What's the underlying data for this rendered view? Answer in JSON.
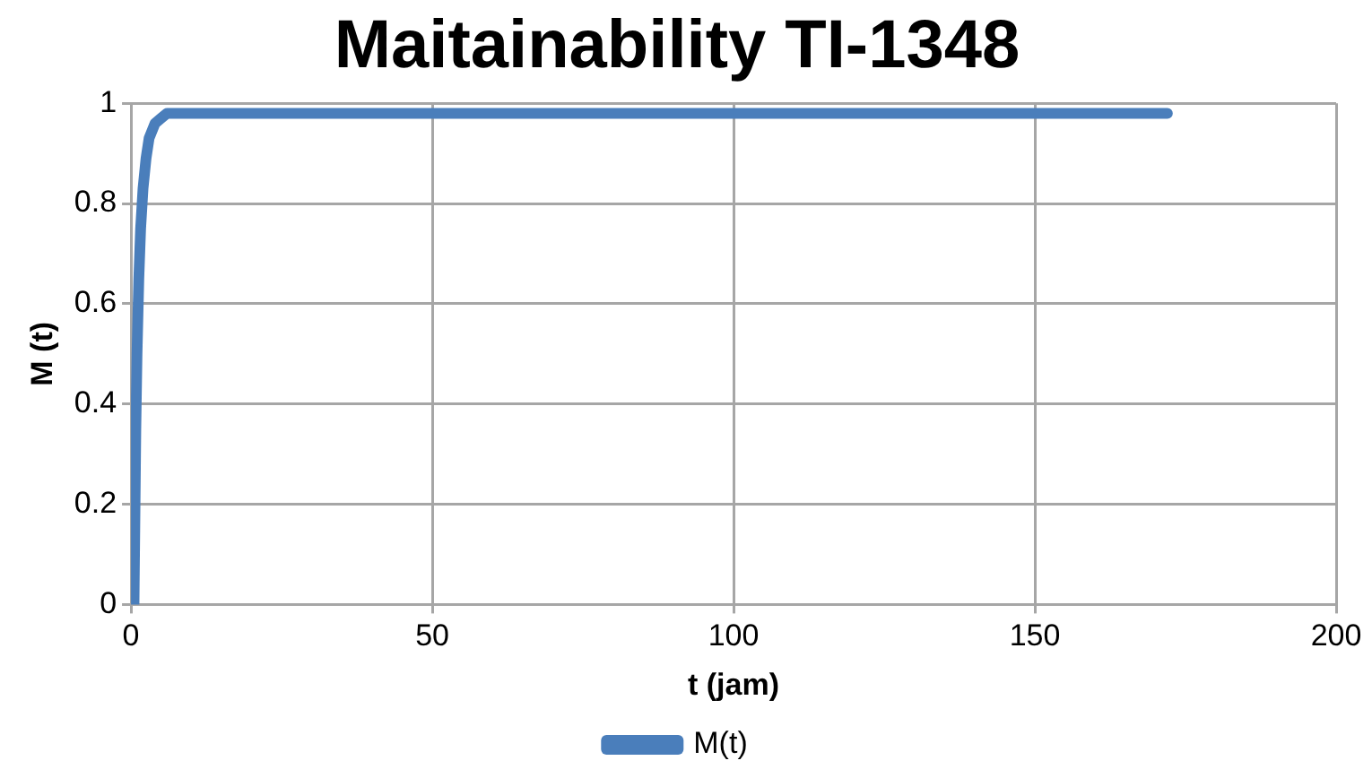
{
  "chart_data": {
    "type": "line",
    "title": "Maitainability TI-1348",
    "xlabel": "t (jam)",
    "ylabel": "M (t)",
    "series": [
      {
        "name": "M(t)",
        "color": "#4a7ebb",
        "x": [
          0.5,
          0.8,
          1,
          1.3,
          1.6,
          2,
          2.5,
          3,
          4,
          5,
          6,
          8,
          10,
          50,
          100,
          172
        ],
        "values": [
          0,
          0.35,
          0.5,
          0.65,
          0.75,
          0.83,
          0.89,
          0.93,
          0.96,
          0.97,
          0.98,
          0.98,
          0.98,
          0.98,
          0.98,
          0.98
        ]
      }
    ],
    "xlim": [
      0,
      200
    ],
    "xticks": [
      0,
      50,
      100,
      150,
      200
    ],
    "ylim": [
      0,
      1
    ],
    "yticks": [
      0,
      0.2,
      0.4,
      0.6,
      0.8,
      1
    ],
    "grid": true,
    "legend": "bottom",
    "marker": "none",
    "line_style": "solid"
  }
}
